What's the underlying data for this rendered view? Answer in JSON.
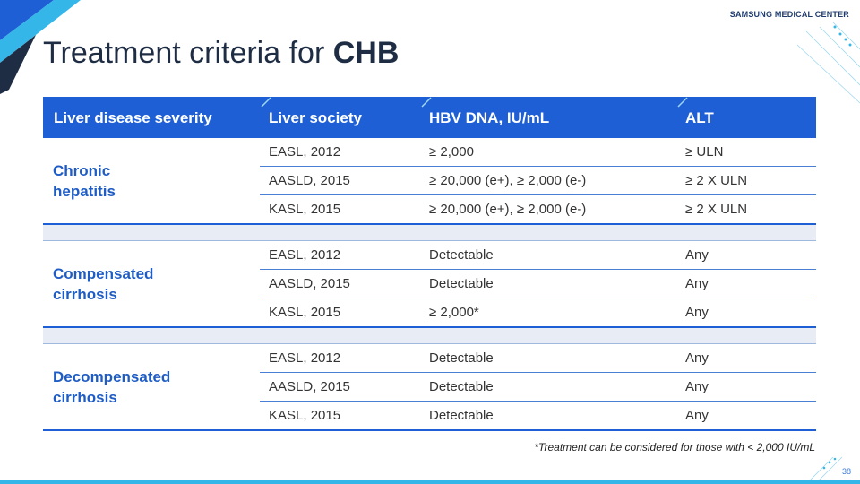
{
  "brand": "SAMSUNG MEDICAL CENTER",
  "title": {
    "normal": "Treatment  criteria for ",
    "bold": "CHB"
  },
  "table": {
    "headers": [
      "Liver disease severity",
      "Liver society",
      "HBV DNA, IU/mL",
      "ALT"
    ],
    "groups": [
      {
        "label": "Chronic hepatitis",
        "label_lines": [
          "Chronic",
          "hepatitis"
        ],
        "rows": [
          [
            "EASL, 2012",
            "≥ 2,000",
            "≥ ULN"
          ],
          [
            "AASLD, 2015",
            "≥ 20,000 (e+), ≥ 2,000 (e-)",
            "≥ 2 X ULN"
          ],
          [
            "KASL, 2015",
            "≥ 20,000 (e+), ≥ 2,000 (e-)",
            "≥ 2 X ULN"
          ]
        ]
      },
      {
        "label": "Compensated cirrhosis",
        "label_lines": [
          "Compensated",
          "cirrhosis"
        ],
        "rows": [
          [
            "EASL, 2012",
            "Detectable",
            "Any"
          ],
          [
            "AASLD, 2015",
            "Detectable",
            "Any"
          ],
          [
            "KASL, 2015",
            "≥ 2,000*",
            "Any"
          ]
        ]
      },
      {
        "label": "Decompensated cirrhosis",
        "label_lines": [
          "Decompensated",
          "cirrhosis"
        ],
        "rows": [
          [
            "EASL, 2012",
            "Detectable",
            "Any"
          ],
          [
            "AASLD, 2015",
            "Detectable",
            "Any"
          ],
          [
            "KASL, 2015",
            "Detectable",
            "Any"
          ]
        ]
      }
    ]
  },
  "footnote": "*Treatment can be considered for those with  < 2,000 IU/mL",
  "page_number": "38",
  "colors": {
    "header_blue": "#1e5fd6",
    "label_blue": "#1f5cc4",
    "accent_cyan": "#35b6e8",
    "title_dark": "#1f2d44"
  }
}
